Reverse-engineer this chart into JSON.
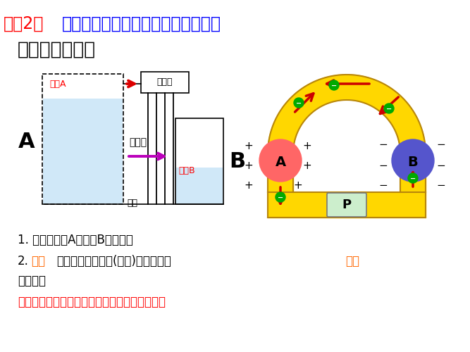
{
  "title_line1": "问题2：",
  "title_line1_color": "#FF0000",
  "title_line2": "导体中产生持续电流的条件是什么？",
  "title_line2_color": "#0000FF",
  "subtitle": "一、电源的作用",
  "subtitle_color": "#000000",
  "bg_color": "#FFFFFF",
  "text1": "1. 能把电子从A搬运到B的装置。",
  "text2_pre": "2.",
  "text2_highlight1": "保持",
  "text2_mid": "导体两端的电势差(电压)，使电路有",
  "text2_highlight2": "持续",
  "text2_line2": "的电流。",
  "text3": "这个装置就是电源。其它形式的能转化为电能。",
  "text_color": "#000000",
  "highlight_color": "#FF6600",
  "text3_color": "#FF0000",
  "arc_color": "#FFD700",
  "arc_border": "#B8860B",
  "ball_A_color": "#FF6666",
  "ball_B_color": "#5555CC",
  "arrow_color": "#CC0000",
  "electron_color": "#00AA00",
  "P_box_color": "#CCEECC",
  "P_box_border": "#777777",
  "plus_color": "#000000",
  "minus_color": "#000000",
  "water_fill": "#D0E8F8",
  "tank_border": "#000000",
  "pump_color": "#FFFFFF",
  "pump_border": "#000000",
  "arrow_pump_color": "#DD0000",
  "arrow_water_color": "#BB00BB",
  "shuishi_A_color": "#FF0000",
  "shuishi_B_color": "#FF0000",
  "shuishi_label": "#000000"
}
